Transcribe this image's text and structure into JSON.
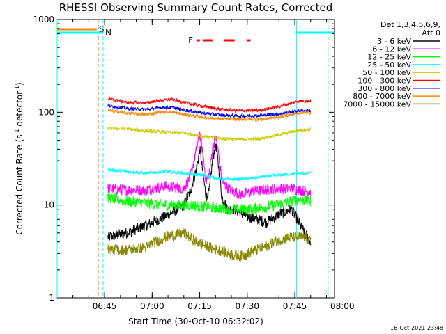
{
  "chart_data": {
    "type": "line",
    "title": "RHESSI Observing Summary Count Rates, Corrected",
    "xlabel": "Start Time (30-Oct-10 06:32:02)",
    "ylabel": "Corrected Count Rate (s⁻¹ detector⁻¹)",
    "ylabel_base": "Corrected Count Rate (s",
    "ylabel_mid": " detector",
    "ylabel_end": ")",
    "ylabel_sup": "-1",
    "y_scale": "log",
    "ylim": [
      1,
      1000
    ],
    "xlim_minutes_from_start": [
      -2,
      85.5
    ],
    "x_ticks": [
      {
        "label": "06:45",
        "t": 12.97
      },
      {
        "label": "07:00",
        "t": 27.97
      },
      {
        "label": "07:15",
        "t": 42.97
      },
      {
        "label": "07:30",
        "t": 57.97
      },
      {
        "label": "07:45",
        "t": 72.97
      },
      {
        "label": "08:00",
        "t": 87.97
      }
    ],
    "y_ticks": [
      {
        "label": "1",
        "v": 1
      },
      {
        "label": "10",
        "v": 10
      },
      {
        "label": "100",
        "v": 100
      },
      {
        "label": "1000",
        "v": 1000
      }
    ],
    "legend_header": [
      "Det 1,3,4,5,6,9,",
      "Att 0"
    ],
    "series": [
      {
        "name": "3 - 6 keV",
        "color": "#000000",
        "points": [
          [
            14,
            4.5
          ],
          [
            20,
            5
          ],
          [
            26,
            6
          ],
          [
            32,
            7.5
          ],
          [
            38,
            10
          ],
          [
            40,
            14
          ],
          [
            42,
            25
          ],
          [
            43,
            40
          ],
          [
            44,
            22
          ],
          [
            45,
            12
          ],
          [
            46,
            14
          ],
          [
            47,
            30
          ],
          [
            48,
            46
          ],
          [
            49,
            25
          ],
          [
            50,
            12
          ],
          [
            52,
            9
          ],
          [
            54,
            9
          ],
          [
            58,
            7.5
          ],
          [
            64,
            6.5
          ],
          [
            68,
            8
          ],
          [
            72,
            9
          ],
          [
            76,
            5
          ],
          [
            78,
            4
          ]
        ]
      },
      {
        "name": "6 - 12 keV",
        "color": "#ff00ff",
        "points": [
          [
            14,
            15
          ],
          [
            20,
            14.5
          ],
          [
            26,
            14.5
          ],
          [
            32,
            16
          ],
          [
            38,
            15
          ],
          [
            40,
            20
          ],
          [
            42,
            40
          ],
          [
            43,
            60
          ],
          [
            44,
            35
          ],
          [
            45,
            18
          ],
          [
            46,
            22
          ],
          [
            47,
            40
          ],
          [
            48,
            55
          ],
          [
            49,
            35
          ],
          [
            50,
            18
          ],
          [
            52,
            15
          ],
          [
            56,
            13
          ],
          [
            60,
            14
          ],
          [
            66,
            15
          ],
          [
            72,
            15
          ],
          [
            78,
            14
          ]
        ]
      },
      {
        "name": "12 - 25 keV",
        "color": "#00ff00",
        "points": [
          [
            14,
            12
          ],
          [
            20,
            11
          ],
          [
            26,
            10.5
          ],
          [
            32,
            10
          ],
          [
            40,
            10
          ],
          [
            46,
            9.5
          ],
          [
            52,
            9
          ],
          [
            58,
            9
          ],
          [
            64,
            9.5
          ],
          [
            70,
            10.5
          ],
          [
            74,
            11.5
          ],
          [
            78,
            11
          ]
        ]
      },
      {
        "name": "25 - 50 keV",
        "color": "#00ffff",
        "points": [
          [
            14,
            24
          ],
          [
            20,
            23
          ],
          [
            26,
            22
          ],
          [
            32,
            23
          ],
          [
            38,
            22
          ],
          [
            44,
            21
          ],
          [
            50,
            19
          ],
          [
            56,
            19
          ],
          [
            62,
            20
          ],
          [
            68,
            21
          ],
          [
            74,
            22
          ],
          [
            78,
            22
          ]
        ]
      },
      {
        "name": "50 - 100 keV",
        "color": "#cccc00",
        "points": [
          [
            14,
            67
          ],
          [
            20,
            66
          ],
          [
            26,
            63
          ],
          [
            32,
            61
          ],
          [
            38,
            60
          ],
          [
            44,
            55
          ],
          [
            50,
            52
          ],
          [
            56,
            51
          ],
          [
            62,
            52
          ],
          [
            68,
            57
          ],
          [
            74,
            64
          ],
          [
            78,
            66
          ]
        ]
      },
      {
        "name": "100 - 300 keV",
        "color": "#ff0000",
        "points": [
          [
            14,
            140
          ],
          [
            20,
            128
          ],
          [
            26,
            126
          ],
          [
            30,
            134
          ],
          [
            34,
            138
          ],
          [
            38,
            128
          ],
          [
            44,
            116
          ],
          [
            50,
            107
          ],
          [
            56,
            104
          ],
          [
            62,
            105
          ],
          [
            68,
            115
          ],
          [
            74,
            132
          ],
          [
            78,
            133
          ]
        ]
      },
      {
        "name": "300 - 800 keV",
        "color": "#0000ff",
        "points": [
          [
            14,
            118
          ],
          [
            20,
            110
          ],
          [
            26,
            107
          ],
          [
            30,
            112
          ],
          [
            34,
            113
          ],
          [
            38,
            106
          ],
          [
            44,
            98
          ],
          [
            50,
            93
          ],
          [
            56,
            91
          ],
          [
            62,
            92
          ],
          [
            68,
            96
          ],
          [
            74,
            104
          ],
          [
            78,
            104
          ]
        ]
      },
      {
        "name": "800 - 7000 keV",
        "color": "#ff8800",
        "points": [
          [
            14,
            105
          ],
          [
            20,
            98
          ],
          [
            26,
            94
          ],
          [
            30,
            100
          ],
          [
            34,
            101
          ],
          [
            38,
            95
          ],
          [
            44,
            88
          ],
          [
            50,
            85
          ],
          [
            56,
            84
          ],
          [
            62,
            84
          ],
          [
            68,
            89
          ],
          [
            74,
            98
          ],
          [
            78,
            99
          ]
        ]
      },
      {
        "name": "7000 - 15000 keV",
        "color": "#888800",
        "points": [
          [
            14,
            3.3
          ],
          [
            20,
            3.3
          ],
          [
            26,
            3.5
          ],
          [
            32,
            4.5
          ],
          [
            38,
            5
          ],
          [
            42,
            4
          ],
          [
            46,
            3.5
          ],
          [
            52,
            3
          ],
          [
            56,
            2.8
          ],
          [
            60,
            3.2
          ],
          [
            64,
            3.6
          ],
          [
            68,
            4.2
          ],
          [
            72,
            4.5
          ],
          [
            76,
            4.5
          ],
          [
            78,
            4
          ]
        ]
      }
    ],
    "flag_rows": [
      {
        "label": "S",
        "color": "#ff8800",
        "segments": [
          [
            -2,
            10.5
          ]
        ]
      },
      {
        "label": "N",
        "color": "#00ffff",
        "segments": [
          [
            -2,
            12.5
          ],
          [
            73.5,
            85.5
          ]
        ]
      },
      {
        "label": "F",
        "color": "#ff0000",
        "segments": [
          [
            42,
            43
          ],
          [
            44,
            47
          ],
          [
            50.5,
            54
          ],
          [
            58,
            59
          ]
        ]
      }
    ],
    "vertical_markers": [
      {
        "t": -2,
        "color": "#00ffff",
        "style": "solid"
      },
      {
        "t": 11.0,
        "color": "#ff8800",
        "style": "dashed"
      },
      {
        "t": 12.5,
        "color": "#00ffff",
        "style": "dashed"
      },
      {
        "t": 73.5,
        "color": "#00ffff",
        "style": "solid"
      },
      {
        "t": 83.5,
        "color": "#00ffff",
        "style": "dashed"
      }
    ]
  },
  "timestamp": "16-Oct-2021 23:48"
}
